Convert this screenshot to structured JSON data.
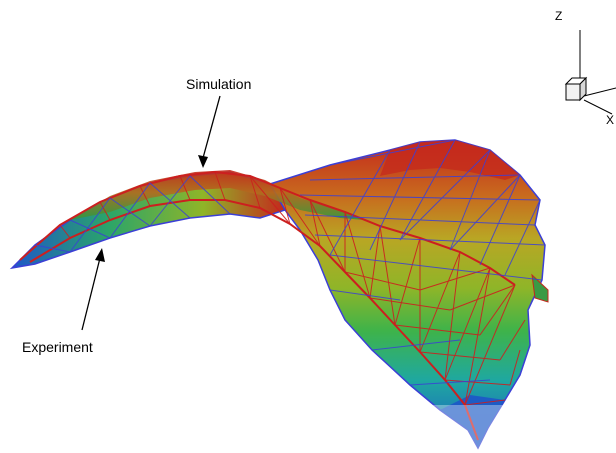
{
  "annotations": {
    "simulation_label": "Simulation",
    "experiment_label": "Experiment"
  },
  "axes_triad": {
    "z_label": "Z",
    "x_label": "X"
  },
  "colors": {
    "simulation_mesh": "#cc1f1f",
    "experiment_mesh": "#3b3fd6",
    "gradient_high": "#c4281c",
    "gradient_mid": "#8fb528",
    "gradient_low": "#1d57c8"
  }
}
